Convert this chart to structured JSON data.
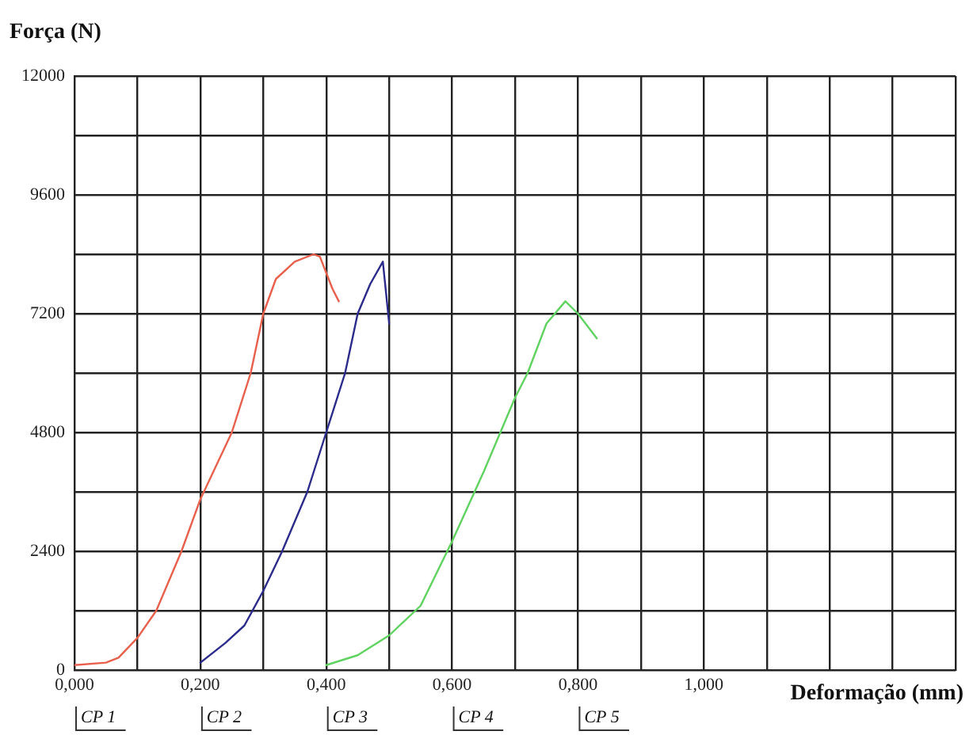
{
  "chart_data": {
    "type": "line",
    "ylabel": "Força (N)",
    "xlabel": "Deformação (mm)",
    "xlim": [
      0,
      1.4
    ],
    "xticks": [
      {
        "value": 0,
        "label": "0,000"
      },
      {
        "value": 0.1,
        "label": null
      },
      {
        "value": 0.2,
        "label": "0,200"
      },
      {
        "value": 0.3,
        "label": null
      },
      {
        "value": 0.4,
        "label": "0,400"
      },
      {
        "value": 0.5,
        "label": null
      },
      {
        "value": 0.6,
        "label": "0,600"
      },
      {
        "value": 0.7,
        "label": null
      },
      {
        "value": 0.8,
        "label": "0,800"
      },
      {
        "value": 0.9,
        "label": null
      },
      {
        "value": 1.0,
        "label": "1,000"
      },
      {
        "value": 1.1,
        "label": null
      },
      {
        "value": 1.2,
        "label": null
      },
      {
        "value": 1.3,
        "label": null
      },
      {
        "value": 1.4,
        "label": null
      }
    ],
    "ylim": [
      0,
      12000
    ],
    "yticks": [
      0,
      {
        "value": 1200,
        "label": null
      },
      2400,
      {
        "value": 3600,
        "label": null
      },
      4800,
      {
        "value": 6000,
        "label": null
      },
      7200,
      {
        "value": 8400,
        "label": null
      },
      9600,
      {
        "value": 10800,
        "label": null
      },
      12000
    ],
    "grid": true,
    "legend": false,
    "marker": "none",
    "line_style": "solid",
    "series": [
      {
        "color": "#e8604c",
        "x": [
          0,
          0.05,
          0.07,
          0.1,
          0.13,
          0.17,
          0.2,
          0.25,
          0.28,
          0.3,
          0.32,
          0.35,
          0.38,
          0.39,
          0.41,
          0.42
        ],
        "values": [
          100,
          150,
          250,
          650,
          1200,
          2400,
          3450,
          4800,
          6000,
          7200,
          7900,
          8250,
          8400,
          8350,
          7700,
          7450
        ]
      },
      {
        "color": "#2b2b8c",
        "x": [
          0.2,
          0.24,
          0.27,
          0.3,
          0.33,
          0.37,
          0.4,
          0.43,
          0.45,
          0.47,
          0.49,
          0.5
        ],
        "values": [
          150,
          550,
          900,
          1600,
          2400,
          3600,
          4800,
          6000,
          7200,
          7800,
          8250,
          7000
        ]
      },
      {
        "color": "#5fd35f",
        "x": [
          0.4,
          0.45,
          0.5,
          0.55,
          0.6,
          0.65,
          0.7,
          0.72,
          0.75,
          0.78,
          0.8,
          0.83
        ],
        "values": [
          100,
          300,
          700,
          1300,
          2600,
          4000,
          5500,
          6000,
          7000,
          7450,
          7200,
          6700
        ]
      }
    ],
    "annotations": [
      "CP 1",
      "CP 2",
      "CP 3",
      "CP 4",
      "CP 5"
    ]
  }
}
